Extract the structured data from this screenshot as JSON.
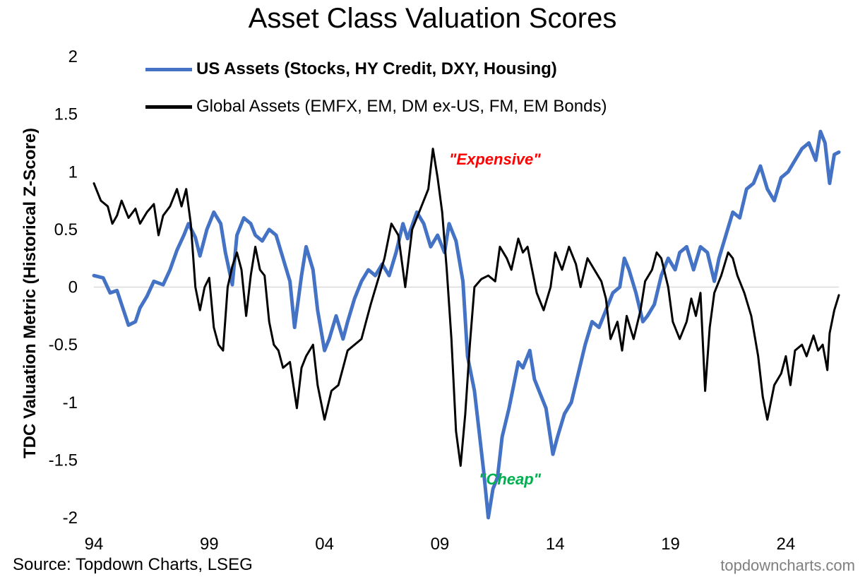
{
  "title": "Asset Class Valuation Scores",
  "source": "Source: Topdown Charts, LSEG",
  "brand": "topdowncharts.com",
  "chart_data": {
    "type": "line",
    "title": "Asset Class Valuation Scores",
    "ylabel": "TDC Valuation Metric (Historical Z-Score)",
    "xlabel": "",
    "ylim": [
      -2,
      2
    ],
    "xlim": [
      1994,
      2026.3
    ],
    "y_ticks": [
      "2",
      "1.5",
      "1",
      "0.5",
      "0",
      "-0.5",
      "-1",
      "-1.5",
      "-2"
    ],
    "x_ticks": [
      "94",
      "99",
      "04",
      "09",
      "14",
      "19",
      "24"
    ],
    "grid": false,
    "legend_position": "top-left",
    "annotations": [
      {
        "text": "\"Expensive\"",
        "color": "#ff0000"
      },
      {
        "text": "\"Cheap\"",
        "color": "#00b050"
      }
    ],
    "series": [
      {
        "name": "US Assets (Stocks, HY Credit, DXY, Housing)",
        "color": "#4472c4",
        "points": [
          [
            1994.0,
            0.1
          ],
          [
            1994.4,
            0.08
          ],
          [
            1994.7,
            -0.05
          ],
          [
            1995.0,
            -0.03
          ],
          [
            1995.2,
            -0.15
          ],
          [
            1995.5,
            -0.33
          ],
          [
            1995.8,
            -0.3
          ],
          [
            1996.0,
            -0.18
          ],
          [
            1996.3,
            -0.08
          ],
          [
            1996.6,
            0.05
          ],
          [
            1997.0,
            0.02
          ],
          [
            1997.3,
            0.15
          ],
          [
            1997.6,
            0.32
          ],
          [
            1997.9,
            0.45
          ],
          [
            1998.1,
            0.55
          ],
          [
            1998.4,
            0.43
          ],
          [
            1998.6,
            0.27
          ],
          [
            1998.9,
            0.5
          ],
          [
            1999.2,
            0.65
          ],
          [
            1999.5,
            0.55
          ],
          [
            1999.7,
            0.3
          ],
          [
            2000.0,
            0.02
          ],
          [
            2000.2,
            0.45
          ],
          [
            2000.5,
            0.6
          ],
          [
            2000.8,
            0.55
          ],
          [
            2001.0,
            0.45
          ],
          [
            2001.3,
            0.4
          ],
          [
            2001.6,
            0.5
          ],
          [
            2001.9,
            0.45
          ],
          [
            2002.2,
            0.25
          ],
          [
            2002.5,
            0.05
          ],
          [
            2002.7,
            -0.35
          ],
          [
            2003.0,
            0.1
          ],
          [
            2003.2,
            0.35
          ],
          [
            2003.5,
            0.15
          ],
          [
            2003.7,
            -0.2
          ],
          [
            2004.0,
            -0.55
          ],
          [
            2004.2,
            -0.45
          ],
          [
            2004.5,
            -0.25
          ],
          [
            2004.8,
            -0.45
          ],
          [
            2005.0,
            -0.3
          ],
          [
            2005.3,
            -0.1
          ],
          [
            2005.6,
            0.05
          ],
          [
            2005.9,
            0.15
          ],
          [
            2006.2,
            0.1
          ],
          [
            2006.5,
            0.2
          ],
          [
            2006.8,
            0.1
          ],
          [
            2007.1,
            0.3
          ],
          [
            2007.4,
            0.55
          ],
          [
            2007.6,
            0.42
          ],
          [
            2008.0,
            0.65
          ],
          [
            2008.3,
            0.55
          ],
          [
            2008.6,
            0.35
          ],
          [
            2008.9,
            0.45
          ],
          [
            2009.2,
            0.3
          ],
          [
            2009.4,
            0.55
          ],
          [
            2009.7,
            0.4
          ],
          [
            2010.0,
            0.05
          ],
          [
            2010.2,
            -0.6
          ],
          [
            2010.5,
            -0.9
          ],
          [
            2010.7,
            -1.25
          ],
          [
            2010.9,
            -1.6
          ],
          [
            2011.1,
            -2.0
          ],
          [
            2011.3,
            -1.75
          ],
          [
            2011.5,
            -1.65
          ],
          [
            2011.7,
            -1.3
          ],
          [
            2012.0,
            -1.05
          ],
          [
            2012.2,
            -0.85
          ],
          [
            2012.4,
            -0.65
          ],
          [
            2012.6,
            -0.7
          ],
          [
            2012.9,
            -0.55
          ],
          [
            2013.1,
            -0.8
          ],
          [
            2013.3,
            -0.9
          ],
          [
            2013.6,
            -1.05
          ],
          [
            2013.9,
            -1.45
          ],
          [
            2014.1,
            -1.3
          ],
          [
            2014.4,
            -1.1
          ],
          [
            2014.7,
            -1.0
          ],
          [
            2015.0,
            -0.75
          ],
          [
            2015.3,
            -0.5
          ],
          [
            2015.6,
            -0.3
          ],
          [
            2015.9,
            -0.35
          ],
          [
            2016.2,
            -0.2
          ],
          [
            2016.5,
            -0.05
          ],
          [
            2016.8,
            0.0
          ],
          [
            2017.0,
            0.25
          ],
          [
            2017.2,
            0.15
          ],
          [
            2017.5,
            -0.05
          ],
          [
            2017.8,
            -0.3
          ],
          [
            2018.0,
            -0.25
          ],
          [
            2018.3,
            -0.15
          ],
          [
            2018.6,
            0.1
          ],
          [
            2018.9,
            0.25
          ],
          [
            2019.2,
            0.15
          ],
          [
            2019.4,
            0.3
          ],
          [
            2019.7,
            0.35
          ],
          [
            2020.0,
            0.15
          ],
          [
            2020.3,
            0.35
          ],
          [
            2020.6,
            0.3
          ],
          [
            2020.9,
            0.05
          ],
          [
            2021.1,
            0.25
          ],
          [
            2021.4,
            0.45
          ],
          [
            2021.7,
            0.65
          ],
          [
            2022.0,
            0.6
          ],
          [
            2022.3,
            0.85
          ],
          [
            2022.6,
            0.9
          ],
          [
            2022.9,
            1.05
          ],
          [
            2023.2,
            0.85
          ],
          [
            2023.5,
            0.75
          ],
          [
            2023.8,
            0.95
          ],
          [
            2024.1,
            1.0
          ],
          [
            2024.4,
            1.1
          ],
          [
            2024.7,
            1.2
          ],
          [
            2025.0,
            1.25
          ],
          [
            2025.3,
            1.1
          ],
          [
            2025.5,
            1.35
          ],
          [
            2025.7,
            1.25
          ],
          [
            2025.9,
            0.9
          ],
          [
            2026.1,
            1.15
          ],
          [
            2026.3,
            1.17
          ]
        ]
      },
      {
        "name": "Global Assets (EMFX, EM, DM ex-US, FM, EM Bonds)",
        "color": "#000000",
        "points": [
          [
            1994.0,
            0.9
          ],
          [
            1994.3,
            0.75
          ],
          [
            1994.6,
            0.7
          ],
          [
            1994.8,
            0.55
          ],
          [
            1995.0,
            0.62
          ],
          [
            1995.2,
            0.75
          ],
          [
            1995.5,
            0.6
          ],
          [
            1995.8,
            0.68
          ],
          [
            1996.0,
            0.55
          ],
          [
            1996.3,
            0.65
          ],
          [
            1996.6,
            0.72
          ],
          [
            1996.8,
            0.45
          ],
          [
            1997.0,
            0.62
          ],
          [
            1997.3,
            0.7
          ],
          [
            1997.6,
            0.85
          ],
          [
            1997.8,
            0.7
          ],
          [
            1998.0,
            0.85
          ],
          [
            1998.2,
            0.55
          ],
          [
            1998.4,
            0.0
          ],
          [
            1998.6,
            -0.2
          ],
          [
            1998.8,
            0.0
          ],
          [
            1999.0,
            0.08
          ],
          [
            1999.2,
            -0.35
          ],
          [
            1999.4,
            -0.5
          ],
          [
            1999.6,
            -0.55
          ],
          [
            1999.8,
            0.0
          ],
          [
            2000.0,
            0.18
          ],
          [
            2000.2,
            0.3
          ],
          [
            2000.4,
            0.15
          ],
          [
            2000.6,
            -0.25
          ],
          [
            2000.8,
            0.1
          ],
          [
            2001.0,
            0.35
          ],
          [
            2001.2,
            0.15
          ],
          [
            2001.4,
            0.1
          ],
          [
            2001.6,
            -0.3
          ],
          [
            2001.8,
            -0.5
          ],
          [
            2002.0,
            -0.55
          ],
          [
            2002.2,
            -0.7
          ],
          [
            2002.5,
            -0.65
          ],
          [
            2002.8,
            -1.05
          ],
          [
            2003.0,
            -0.7
          ],
          [
            2003.2,
            -0.6
          ],
          [
            2003.5,
            -0.5
          ],
          [
            2003.7,
            -0.85
          ],
          [
            2004.0,
            -1.15
          ],
          [
            2004.3,
            -0.9
          ],
          [
            2004.6,
            -0.85
          ],
          [
            2004.8,
            -0.7
          ],
          [
            2005.0,
            -0.55
          ],
          [
            2005.3,
            -0.5
          ],
          [
            2005.6,
            -0.45
          ],
          [
            2005.8,
            -0.3
          ],
          [
            2006.0,
            -0.15
          ],
          [
            2006.3,
            0.05
          ],
          [
            2006.6,
            0.25
          ],
          [
            2006.9,
            0.55
          ],
          [
            2007.2,
            0.45
          ],
          [
            2007.5,
            0.0
          ],
          [
            2007.8,
            0.5
          ],
          [
            2008.0,
            0.6
          ],
          [
            2008.3,
            0.75
          ],
          [
            2008.5,
            0.85
          ],
          [
            2008.7,
            1.2
          ],
          [
            2008.9,
            0.95
          ],
          [
            2009.1,
            0.65
          ],
          [
            2009.3,
            0.15
          ],
          [
            2009.5,
            -0.45
          ],
          [
            2009.7,
            -1.25
          ],
          [
            2009.9,
            -1.55
          ],
          [
            2010.1,
            -1.1
          ],
          [
            2010.3,
            -0.5
          ],
          [
            2010.5,
            0.0
          ],
          [
            2010.8,
            0.07
          ],
          [
            2011.1,
            0.1
          ],
          [
            2011.4,
            0.05
          ],
          [
            2011.6,
            0.35
          ],
          [
            2011.9,
            0.25
          ],
          [
            2012.1,
            0.15
          ],
          [
            2012.4,
            0.42
          ],
          [
            2012.6,
            0.3
          ],
          [
            2012.8,
            0.35
          ],
          [
            2013.0,
            0.15
          ],
          [
            2013.2,
            -0.05
          ],
          [
            2013.5,
            -0.2
          ],
          [
            2013.8,
            0.0
          ],
          [
            2014.0,
            0.3
          ],
          [
            2014.3,
            0.15
          ],
          [
            2014.6,
            0.35
          ],
          [
            2014.9,
            0.2
          ],
          [
            2015.1,
            0.0
          ],
          [
            2015.4,
            0.25
          ],
          [
            2015.7,
            0.15
          ],
          [
            2016.0,
            0.05
          ],
          [
            2016.2,
            -0.1
          ],
          [
            2016.4,
            -0.45
          ],
          [
            2016.7,
            -0.3
          ],
          [
            2016.9,
            -0.55
          ],
          [
            2017.1,
            -0.25
          ],
          [
            2017.4,
            -0.45
          ],
          [
            2017.7,
            -0.2
          ],
          [
            2017.9,
            0.05
          ],
          [
            2018.2,
            0.15
          ],
          [
            2018.4,
            0.3
          ],
          [
            2018.6,
            0.25
          ],
          [
            2018.9,
            0.0
          ],
          [
            2019.1,
            -0.3
          ],
          [
            2019.4,
            -0.45
          ],
          [
            2019.7,
            -0.3
          ],
          [
            2019.9,
            -0.1
          ],
          [
            2020.1,
            -0.25
          ],
          [
            2020.3,
            -0.05
          ],
          [
            2020.5,
            -0.9
          ],
          [
            2020.7,
            -0.35
          ],
          [
            2020.9,
            -0.05
          ],
          [
            2021.2,
            0.1
          ],
          [
            2021.5,
            0.3
          ],
          [
            2021.7,
            0.25
          ],
          [
            2021.9,
            0.1
          ],
          [
            2022.2,
            -0.05
          ],
          [
            2022.5,
            -0.25
          ],
          [
            2022.8,
            -0.6
          ],
          [
            2023.0,
            -0.95
          ],
          [
            2023.2,
            -1.15
          ],
          [
            2023.5,
            -0.85
          ],
          [
            2023.8,
            -0.75
          ],
          [
            2024.0,
            -0.6
          ],
          [
            2024.2,
            -0.85
          ],
          [
            2024.4,
            -0.55
          ],
          [
            2024.7,
            -0.5
          ],
          [
            2024.9,
            -0.6
          ],
          [
            2025.2,
            -0.42
          ],
          [
            2025.4,
            -0.55
          ],
          [
            2025.6,
            -0.5
          ],
          [
            2025.8,
            -0.72
          ],
          [
            2025.9,
            -0.4
          ],
          [
            2026.1,
            -0.2
          ],
          [
            2026.3,
            -0.07
          ]
        ]
      }
    ]
  }
}
